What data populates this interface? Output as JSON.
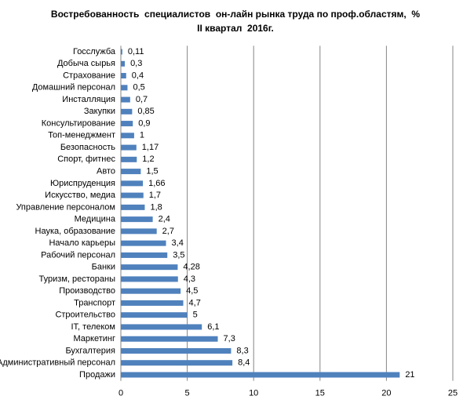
{
  "chart_data": {
    "type": "hbar",
    "title": "Востребованность  специалистов  он-лайн рынка труда по проф.областям,  %",
    "subtitle": "II квартал  2016г.",
    "categories": [
      "Госслужба",
      "Добыча сырья",
      "Страхование",
      "Домашний персонал",
      "Инсталляция",
      "Закупки",
      "Консультирование",
      "Топ-менеджмент",
      "Безопасность",
      "Спорт, фитнес",
      "Авто",
      "Юриспруденция",
      "Искусство, медиа",
      "Управление персоналом",
      "Медицина",
      "Наука, образование",
      "Начало карьеры",
      "Рабочий персонал",
      "Банки",
      "Туризм, рестораны",
      "Производство",
      "Транспорт",
      "Строительство",
      "IT, телеком",
      "Маркетинг",
      "Бухгалтерия",
      "Административный персонал",
      "Продажи"
    ],
    "values": [
      0.11,
      0.3,
      0.4,
      0.5,
      0.7,
      0.85,
      0.9,
      1,
      1.17,
      1.2,
      1.5,
      1.66,
      1.7,
      1.8,
      2.4,
      2.7,
      3.4,
      3.5,
      4.28,
      4.3,
      4.5,
      4.7,
      5,
      6.1,
      7.3,
      8.3,
      8.4,
      21
    ],
    "value_labels": [
      "0,11",
      "0,3",
      "0,4",
      "0,5",
      "0,7",
      "0,85",
      "0,9",
      "1",
      "1,17",
      "1,2",
      "1,5",
      "1,66",
      "1,7",
      "1,8",
      "2,4",
      "2,7",
      "3,4",
      "3,5",
      "4,28",
      "4,3",
      "4,5",
      "4,7",
      "5",
      "6,1",
      "7,3",
      "8,3",
      "8,4",
      "21"
    ],
    "color": "#4f81bd",
    "xlim": [
      0,
      25
    ],
    "xticks": [
      0,
      5,
      10,
      15,
      20,
      25
    ],
    "grid": true
  }
}
